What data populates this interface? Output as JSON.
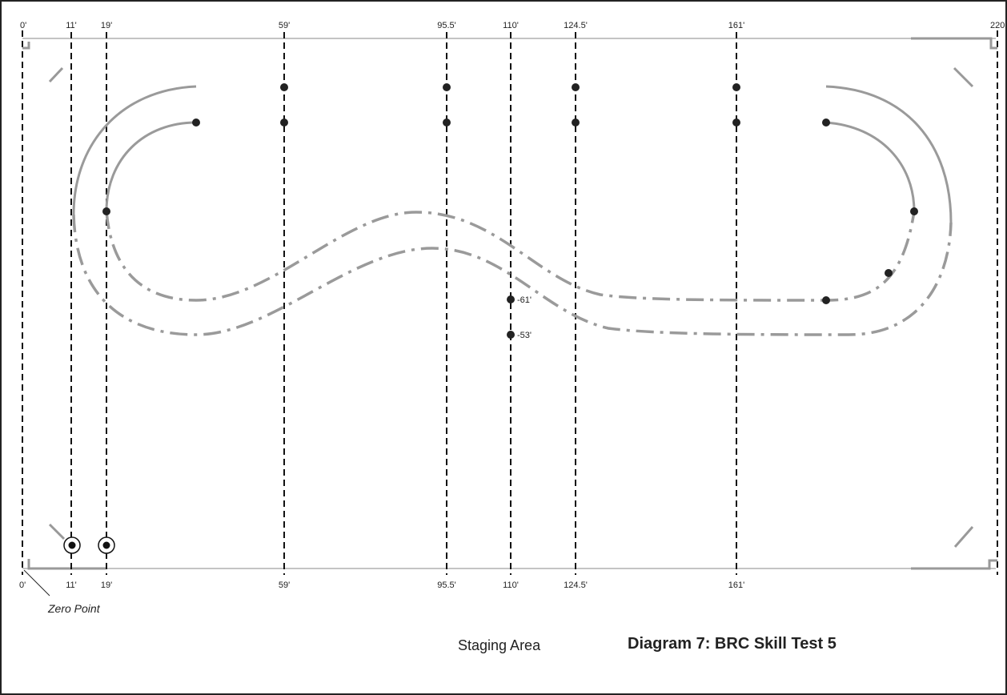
{
  "diagram": {
    "title": "Diagram 7:  BRC Skill Test  5",
    "staging_label": "Staging Area",
    "zero_point_label": "Zero Point",
    "top_end_labels": {
      "left": "0'",
      "right": "220"
    },
    "bottom_zero_label": "0'",
    "dashed_lines": [
      {
        "id": "11",
        "top": "11'",
        "bottom": "11'"
      },
      {
        "id": "19",
        "top": "19'",
        "bottom": "19'"
      },
      {
        "id": "59",
        "top": "59'",
        "bottom": "59'"
      },
      {
        "id": "95-5",
        "top": "95.5'",
        "bottom": "95.5'"
      },
      {
        "id": "110",
        "top": "110'",
        "bottom": "110'"
      },
      {
        "id": "124-5",
        "top": "124.5'",
        "bottom": "124.5'"
      },
      {
        "id": "161",
        "top": "161'",
        "bottom": "161'"
      }
    ],
    "center_markers": [
      {
        "label": "-61'"
      },
      {
        "label": "-53'"
      }
    ],
    "colors": {
      "border": "#222222",
      "boundary": "#888888",
      "corner": "#999999",
      "dashed": "#111111",
      "path": "#9a9a9a",
      "dot": "#222222"
    }
  }
}
